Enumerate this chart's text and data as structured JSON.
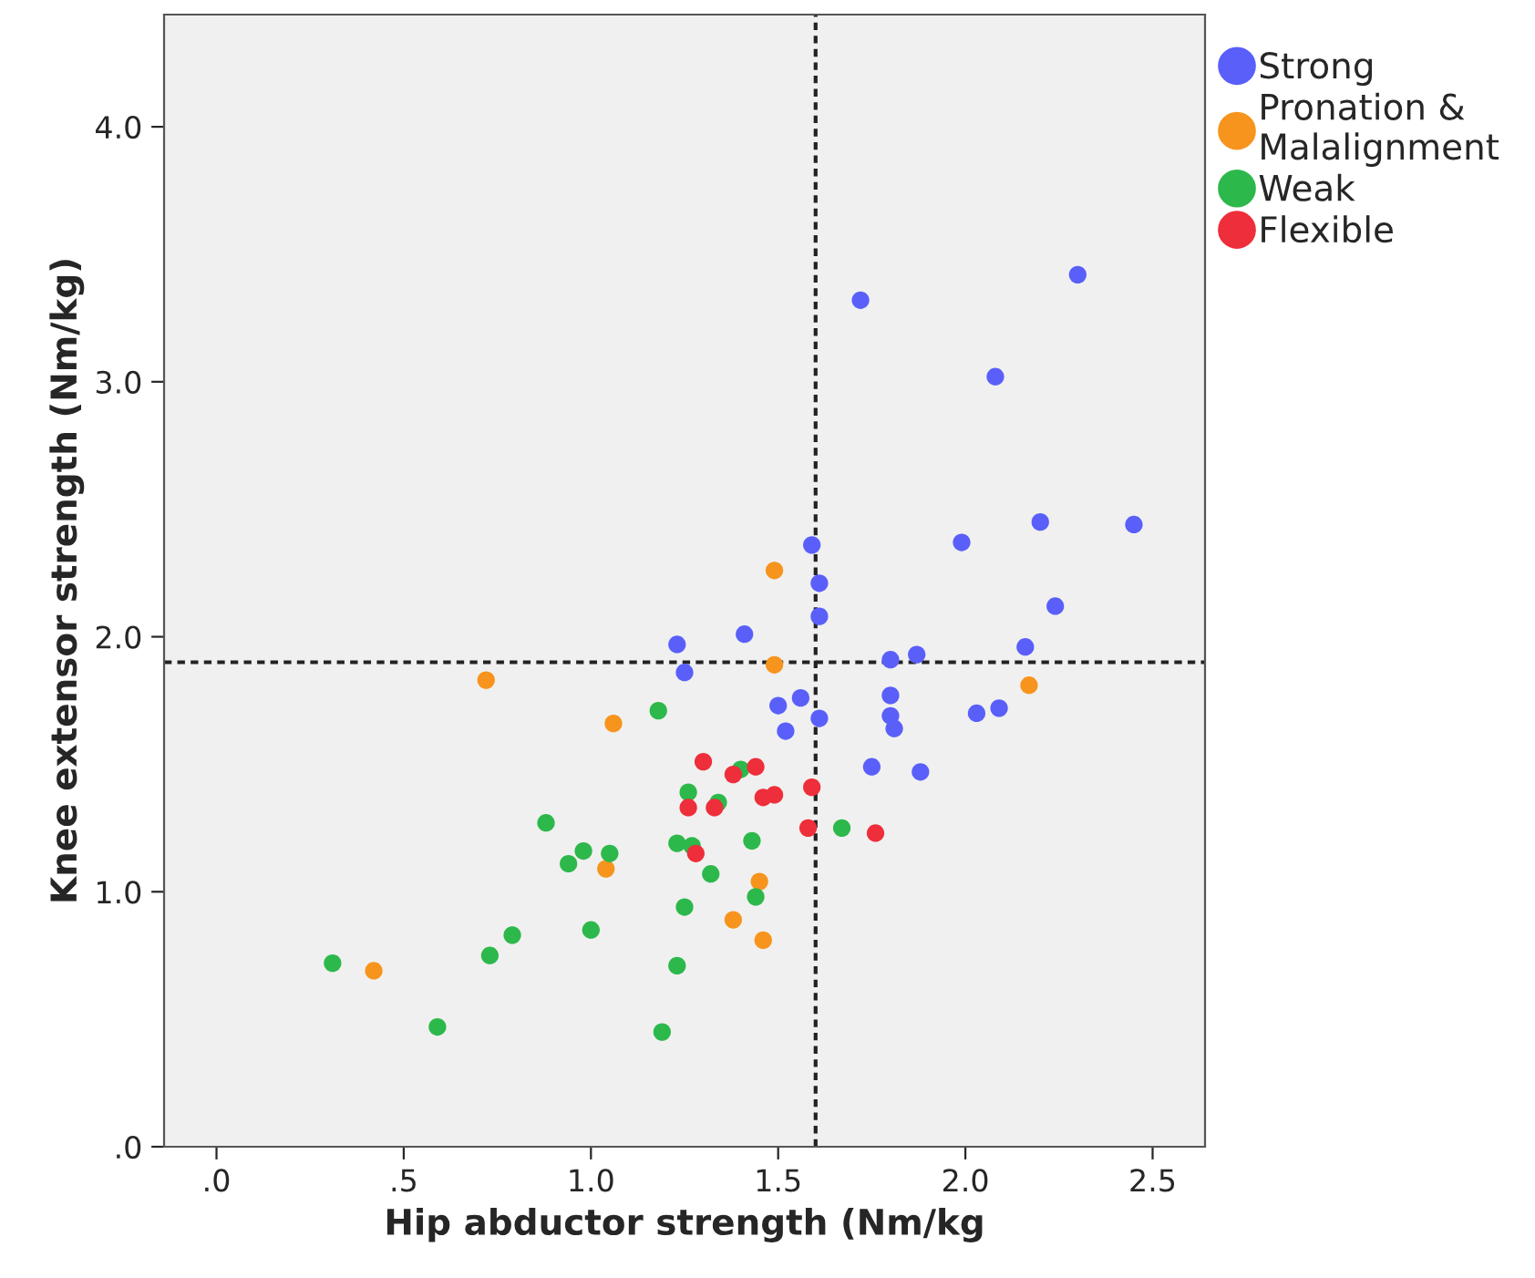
{
  "chart_data": {
    "type": "scatter",
    "xlabel": "Hip abductor strength (Nm/kg",
    "ylabel": "Knee extensor strength (Nm/kg)",
    "xlim": [
      -0.14,
      2.64
    ],
    "ylim": [
      0,
      4.44
    ],
    "xticks": [
      {
        "value": 0,
        "label": ".0"
      },
      {
        "value": 0.5,
        "label": ".5"
      },
      {
        "value": 1.0,
        "label": "1.0"
      },
      {
        "value": 1.5,
        "label": "1.5"
      },
      {
        "value": 2.0,
        "label": "2.0"
      },
      {
        "value": 2.5,
        "label": "2.5"
      }
    ],
    "yticks": [
      {
        "value": 0,
        "label": ".0"
      },
      {
        "value": 1.0,
        "label": "1.0"
      },
      {
        "value": 2.0,
        "label": "2.0"
      },
      {
        "value": 3.0,
        "label": "3.0"
      },
      {
        "value": 4.0,
        "label": "4.0"
      }
    ],
    "grid": false,
    "legend": "top right",
    "marker": "circle",
    "ref_lines": [
      {
        "axis": "x",
        "value": 1.6,
        "label": null,
        "color": "#222222",
        "line_style": "dotted"
      },
      {
        "axis": "y",
        "value": 1.9,
        "label": null,
        "color": "#222222",
        "line_style": "dotted"
      }
    ],
    "series": [
      {
        "name": "Strong",
        "color": "#5a5ffa",
        "x": [
          1.72,
          2.3,
          2.08,
          1.59,
          1.99,
          2.2,
          2.45,
          1.61,
          1.61,
          2.24,
          2.16,
          1.8,
          1.87,
          1.8,
          1.8,
          1.81,
          2.03,
          2.09,
          1.61,
          1.75,
          1.88,
          1.23,
          1.41,
          1.25,
          1.5,
          1.56,
          1.52
        ],
        "values": [
          3.32,
          3.42,
          3.02,
          2.36,
          2.37,
          2.45,
          2.44,
          2.21,
          2.08,
          2.12,
          1.96,
          1.91,
          1.93,
          1.77,
          1.69,
          1.64,
          1.7,
          1.72,
          1.68,
          1.49,
          1.47,
          1.97,
          2.01,
          1.86,
          1.73,
          1.76,
          1.63
        ]
      },
      {
        "name": "Pronation & Malalignment",
        "color": "#f7941d",
        "x": [
          2.17,
          1.49,
          1.49,
          1.45,
          1.38,
          1.46,
          0.72,
          1.06,
          1.04,
          0.42
        ],
        "values": [
          1.81,
          2.26,
          1.89,
          1.04,
          0.89,
          0.81,
          1.83,
          1.66,
          1.09,
          0.69
        ]
      },
      {
        "name": "Weak",
        "color": "#2db84b",
        "x": [
          1.18,
          1.4,
          1.26,
          1.34,
          1.67,
          1.23,
          1.27,
          1.43,
          1.32,
          1.44,
          1.25,
          1.23,
          1.19,
          0.88,
          0.98,
          0.94,
          1.05,
          1.0,
          0.79,
          0.73,
          0.31,
          0.59
        ],
        "values": [
          1.71,
          1.48,
          1.39,
          1.35,
          1.25,
          1.19,
          1.18,
          1.2,
          1.07,
          0.98,
          0.94,
          0.71,
          0.45,
          1.27,
          1.16,
          1.11,
          1.15,
          0.85,
          0.83,
          0.75,
          0.72,
          0.47
        ]
      },
      {
        "name": "Flexible",
        "color": "#ee2e3a",
        "x": [
          1.3,
          1.38,
          1.44,
          1.26,
          1.33,
          1.46,
          1.49,
          1.59,
          1.58,
          1.76,
          1.28
        ],
        "values": [
          1.51,
          1.46,
          1.49,
          1.33,
          1.33,
          1.37,
          1.38,
          1.41,
          1.25,
          1.23,
          1.15
        ]
      }
    ]
  }
}
